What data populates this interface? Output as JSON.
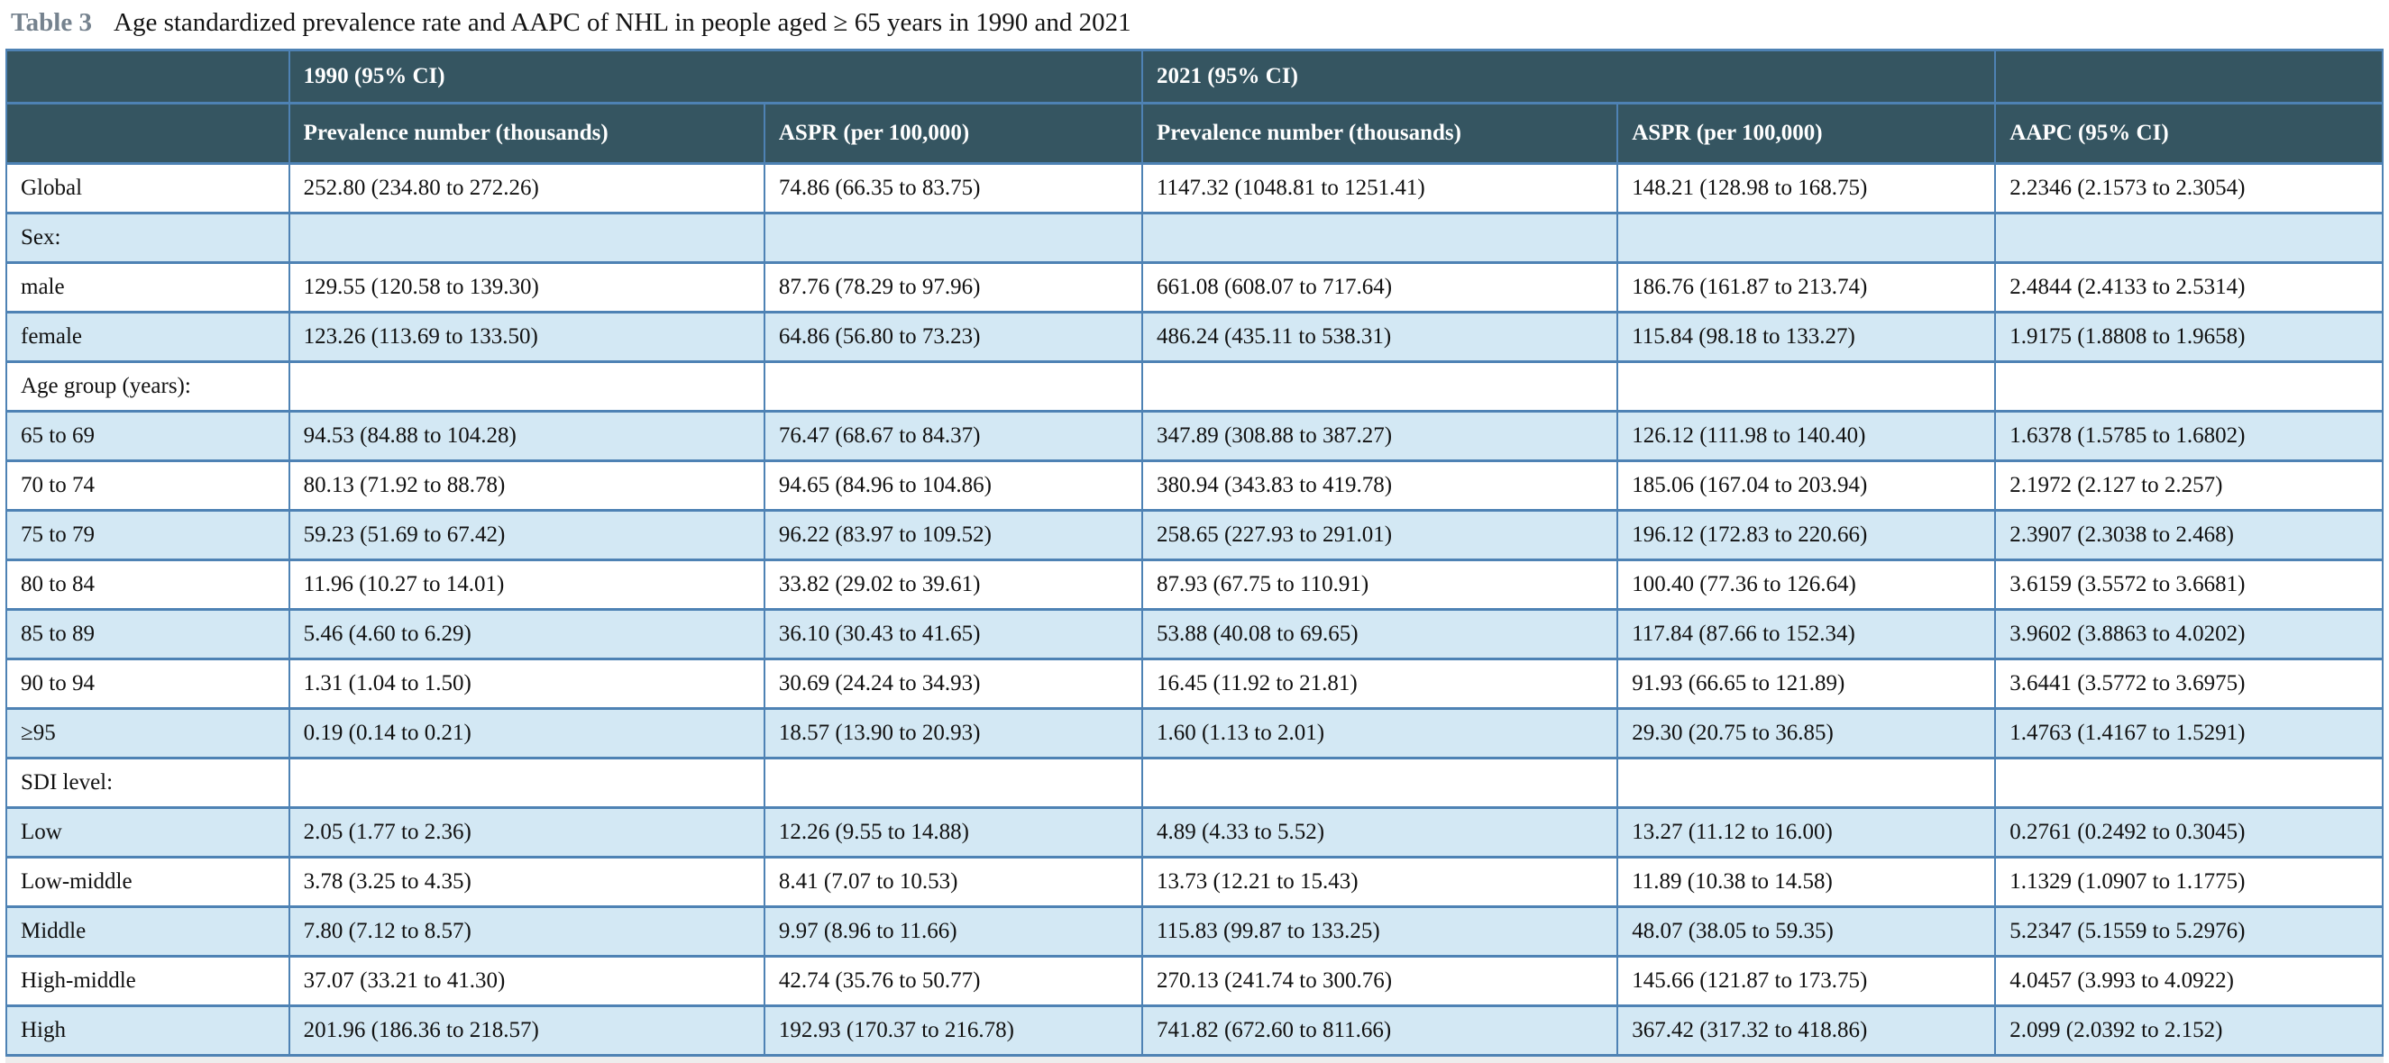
{
  "title": {
    "label": "Table 3",
    "text": "Age standardized prevalence rate and AAPC of NHL in people aged ≥ 65 years in 1990 and 2021"
  },
  "colors": {
    "header_bg": "#355561",
    "header_text": "#ffffff",
    "row_bg": "#ffffff",
    "row_alt_bg": "#d3e8f4",
    "border": "#4e82b4",
    "caption_label": "#75828e",
    "footnote_strip": "#ededed"
  },
  "table": {
    "header": {
      "group_1990": "1990 (95% CI)",
      "group_2021": "2021 (95% CI)",
      "col_prevalence_1990": "Prevalence number (thousands)",
      "col_aspr_1990": "ASPR (per 100,000)",
      "col_prevalence_2021": "Prevalence number (thousands)",
      "col_aspr_2021": "ASPR (per 100,000)",
      "col_aapc": "AAPC (95% CI)"
    },
    "rows": [
      {
        "cells": [
          "Global",
          "252.80 (234.80 to 272.26)",
          "74.86 (66.35 to 83.75)",
          "1147.32 (1048.81 to 1251.41)",
          "148.21 (128.98 to 168.75)",
          "2.2346 (2.1573 to 2.3054)"
        ]
      },
      {
        "cells": [
          "Sex:",
          "",
          "",
          "",
          "",
          ""
        ]
      },
      {
        "cells": [
          "male",
          "129.55 (120.58 to 139.30)",
          "87.76 (78.29 to 97.96)",
          "661.08 (608.07 to 717.64)",
          "186.76 (161.87 to 213.74)",
          "2.4844 (2.4133 to 2.5314)"
        ]
      },
      {
        "cells": [
          "female",
          "123.26 (113.69 to 133.50)",
          "64.86 (56.80 to 73.23)",
          "486.24 (435.11 to 538.31)",
          "115.84 (98.18 to 133.27)",
          "1.9175 (1.8808 to 1.9658)"
        ]
      },
      {
        "cells": [
          "Age group (years):",
          "",
          "",
          "",
          "",
          ""
        ]
      },
      {
        "cells": [
          "65 to 69",
          "94.53 (84.88 to 104.28)",
          "76.47 (68.67 to 84.37)",
          "347.89 (308.88 to 387.27)",
          "126.12 (111.98 to 140.40)",
          "1.6378 (1.5785 to 1.6802)"
        ]
      },
      {
        "cells": [
          "70 to 74",
          "80.13 (71.92 to 88.78)",
          "94.65 (84.96 to 104.86)",
          "380.94 (343.83 to 419.78)",
          "185.06 (167.04 to 203.94)",
          "2.1972 (2.127 to 2.257)"
        ]
      },
      {
        "cells": [
          "75 to 79",
          "59.23 (51.69 to 67.42)",
          "96.22 (83.97 to 109.52)",
          "258.65 (227.93 to 291.01)",
          "196.12 (172.83 to 220.66)",
          "2.3907 (2.3038 to 2.468)"
        ]
      },
      {
        "cells": [
          "80 to 84",
          "11.96 (10.27 to 14.01)",
          "33.82 (29.02 to 39.61)",
          "87.93 (67.75 to 110.91)",
          "100.40 (77.36 to 126.64)",
          "3.6159 (3.5572 to 3.6681)"
        ]
      },
      {
        "cells": [
          "85 to 89",
          "5.46 (4.60 to 6.29)",
          "36.10 (30.43 to 41.65)",
          "53.88 (40.08 to 69.65)",
          "117.84 (87.66 to 152.34)",
          "3.9602 (3.8863 to 4.0202)"
        ]
      },
      {
        "cells": [
          "90 to 94",
          "1.31 (1.04 to 1.50)",
          "30.69 (24.24 to 34.93)",
          "16.45 (11.92 to 21.81)",
          "91.93 (66.65 to 121.89)",
          "3.6441 (3.5772 to 3.6975)"
        ]
      },
      {
        "cells": [
          "≥95",
          "0.19 (0.14 to 0.21)",
          "18.57 (13.90 to 20.93)",
          "1.60 (1.13 to 2.01)",
          "29.30 (20.75 to 36.85)",
          "1.4763 (1.4167 to 1.5291)"
        ]
      },
      {
        "cells": [
          "SDI level:",
          "",
          "",
          "",
          "",
          ""
        ]
      },
      {
        "cells": [
          "Low",
          "2.05 (1.77 to 2.36)",
          "12.26 (9.55 to 14.88)",
          "4.89 (4.33 to 5.52)",
          "13.27 (11.12 to 16.00)",
          "0.2761 (0.2492 to 0.3045)"
        ]
      },
      {
        "cells": [
          "Low-middle",
          "3.78 (3.25 to 4.35)",
          "8.41 (7.07 to 10.53)",
          "13.73 (12.21 to 15.43)",
          "11.89 (10.38 to 14.58)",
          "1.1329 (1.0907 to 1.1775)"
        ]
      },
      {
        "cells": [
          "Middle",
          "7.80 (7.12 to 8.57)",
          "9.97 (8.96 to 11.66)",
          "115.83 (99.87 to 133.25)",
          "48.07 (38.05 to 59.35)",
          "5.2347 (5.1559 to 5.2976)"
        ]
      },
      {
        "cells": [
          "High-middle",
          "37.07 (33.21 to 41.30)",
          "42.74 (35.76 to 50.77)",
          "270.13 (241.74 to 300.76)",
          "145.66 (121.87 to 173.75)",
          "4.0457 (3.993 to 4.0922)"
        ]
      },
      {
        "cells": [
          "High",
          "201.96 (186.36 to 218.57)",
          "192.93 (170.37 to 216.78)",
          "741.82 (672.60 to 811.66)",
          "367.42 (317.32 to 418.86)",
          "2.099 (2.0392 to 2.152)"
        ]
      }
    ]
  }
}
